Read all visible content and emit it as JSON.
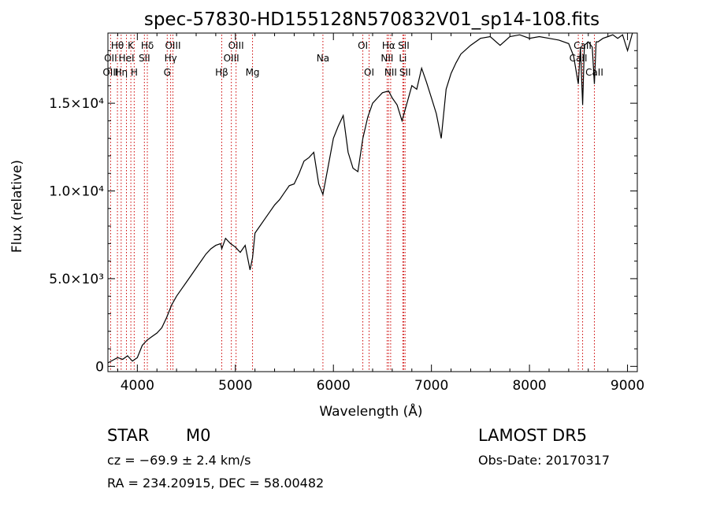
{
  "chart_data": {
    "type": "line",
    "title": "spec-57830-HD155128N570832V01_sp14-108.fits",
    "xlabel": "Wavelength (Å)",
    "ylabel": "Flux (relative)",
    "xlim": [
      3700,
      9100
    ],
    "ylim": [
      -300,
      19000
    ],
    "xticks": [
      {
        "value": 4000,
        "label": "4000"
      },
      {
        "value": 5000,
        "label": "5000"
      },
      {
        "value": 6000,
        "label": "6000"
      },
      {
        "value": 7000,
        "label": "7000"
      },
      {
        "value": 8000,
        "label": "8000"
      },
      {
        "value": 9000,
        "label": "9000"
      }
    ],
    "yticks": [
      {
        "value": 0,
        "label": "0"
      },
      {
        "value": 5000,
        "label": "5.0×10³"
      },
      {
        "value": 10000,
        "label": "1.0×10⁴"
      },
      {
        "value": 15000,
        "label": "1.5×10⁴"
      }
    ],
    "grid": false,
    "legend": "none",
    "line_color": "#000000",
    "marker_color": "#cc0000",
    "series": [
      {
        "x": [
          3700,
          3750,
          3800,
          3850,
          3900,
          3950,
          4000,
          4050,
          4100,
          4150,
          4200,
          4250,
          4300,
          4350,
          4400,
          4450,
          4500,
          4550,
          4600,
          4650,
          4700,
          4750,
          4800,
          4850,
          4861,
          4900,
          4950,
          5000,
          5050,
          5100,
          5150,
          5175,
          5200,
          5250,
          5300,
          5350,
          5400,
          5450,
          5500,
          5550,
          5600,
          5650,
          5700,
          5750,
          5800,
          5850,
          5893,
          5950,
          6000,
          6050,
          6100,
          6150,
          6200,
          6250,
          6300,
          6350,
          6400,
          6450,
          6500,
          6563,
          6600,
          6650,
          6700,
          6750,
          6800,
          6850,
          6900,
          6950,
          7000,
          7050,
          7100,
          7150,
          7200,
          7250,
          7300,
          7400,
          7500,
          7600,
          7700,
          7800,
          7900,
          8000,
          8100,
          8200,
          8300,
          8400,
          8450,
          8498,
          8520,
          8542,
          8560,
          8600,
          8640,
          8662,
          8680,
          8700,
          8750,
          8800,
          8850,
          8900,
          8950,
          9000,
          9050
        ],
        "y": [
          200,
          350,
          500,
          400,
          600,
          300,
          500,
          1200,
          1500,
          1700,
          1900,
          2200,
          2800,
          3500,
          4000,
          4400,
          4800,
          5200,
          5600,
          6000,
          6400,
          6700,
          6900,
          7000,
          6700,
          7300,
          7000,
          6800,
          6500,
          6900,
          5500,
          6200,
          7600,
          8000,
          8400,
          8800,
          9200,
          9500,
          9900,
          10300,
          10400,
          11000,
          11700,
          11900,
          12200,
          10400,
          9800,
          11500,
          13000,
          13700,
          14300,
          12200,
          11300,
          11100,
          13000,
          14200,
          15000,
          15300,
          15600,
          15700,
          15300,
          14900,
          14000,
          15000,
          16000,
          15800,
          17000,
          16200,
          15300,
          14400,
          13000,
          15800,
          16700,
          17300,
          17800,
          18300,
          18700,
          18800,
          18300,
          18800,
          18900,
          18700,
          18800,
          18700,
          18600,
          18400,
          17700,
          16100,
          18200,
          14900,
          18300,
          18500,
          18200,
          16100,
          18500,
          18500,
          18700,
          18800,
          18900,
          18700,
          18900,
          18000,
          19000
        ]
      }
    ],
    "spectral_lines": [
      {
        "label": "Hθ",
        "wave": 3797,
        "row": 1
      },
      {
        "label": "OII",
        "wave": 3727,
        "row": 2
      },
      {
        "label": "OIII",
        "wave": 3727,
        "row": 3
      },
      {
        "label": "Hη",
        "wave": 3835,
        "row": 3
      },
      {
        "label": "HeI",
        "wave": 3889,
        "row": 2
      },
      {
        "label": "K",
        "wave": 3934,
        "row": 1
      },
      {
        "label": "H",
        "wave": 3968,
        "row": 3
      },
      {
        "label": "Hδ",
        "wave": 4102,
        "row": 1
      },
      {
        "label": "SII",
        "wave": 4072,
        "row": 2
      },
      {
        "label": "OIII",
        "wave": 4363,
        "row": 1
      },
      {
        "label": "Hγ",
        "wave": 4340,
        "row": 2
      },
      {
        "label": "G",
        "wave": 4305,
        "row": 3
      },
      {
        "label": "Hβ",
        "wave": 4861,
        "row": 3
      },
      {
        "label": "OIII",
        "wave": 5007,
        "row": 1
      },
      {
        "label": "OIII",
        "wave": 4959,
        "row": 2
      },
      {
        "label": "Mg",
        "wave": 5175,
        "row": 3
      },
      {
        "label": "Na",
        "wave": 5893,
        "row": 2
      },
      {
        "label": "OI",
        "wave": 6300,
        "row": 1
      },
      {
        "label": "OI",
        "wave": 6364,
        "row": 3
      },
      {
        "label": "Hα",
        "wave": 6563,
        "row": 1
      },
      {
        "label": "NII",
        "wave": 6548,
        "row": 2
      },
      {
        "label": "NII",
        "wave": 6584,
        "row": 3
      },
      {
        "label": "SII",
        "wave": 6717,
        "row": 1
      },
      {
        "label": "Li",
        "wave": 6708,
        "row": 2
      },
      {
        "label": "SII",
        "wave": 6731,
        "row": 3
      },
      {
        "label": "CaII",
        "wave": 8542,
        "row": 1
      },
      {
        "label": "CaII",
        "wave": 8498,
        "row": 2
      },
      {
        "label": "CaII",
        "wave": 8662,
        "row": 3
      }
    ]
  },
  "footer": {
    "object_class": "STAR",
    "subclass": "M0",
    "survey": "LAMOST DR5",
    "velocity": "cz = −69.9 ± 2.4 km/s",
    "obs_date": "Obs-Date: 20170317",
    "coords": "RA = 234.20915, DEC =  58.00482"
  }
}
